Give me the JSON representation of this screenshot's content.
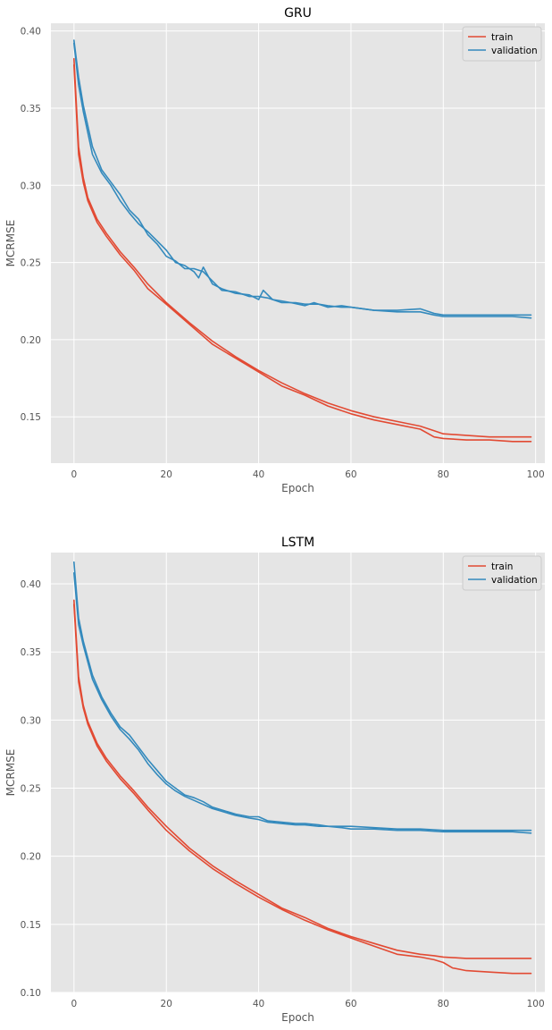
{
  "chart_data": [
    {
      "type": "line",
      "title": "GRU",
      "xlabel": "Epoch",
      "ylabel": "MCRMSE",
      "xlim": [
        -5,
        102
      ],
      "ylim": [
        0.12,
        0.405
      ],
      "xticks": [
        0,
        20,
        40,
        60,
        80,
        100
      ],
      "yticks": [
        0.15,
        0.2,
        0.25,
        0.3,
        0.35,
        0.4
      ],
      "ytick_labels": [
        "0.15",
        "0.20",
        "0.25",
        "0.30",
        "0.35",
        "0.40"
      ],
      "grid": true,
      "legend_position": "top-right",
      "legend": [
        {
          "label": "train",
          "color": "#e24a33"
        },
        {
          "label": "validation",
          "color": "#348abd"
        }
      ],
      "series": [
        {
          "name": "train",
          "color": "#e24a33",
          "x": [
            0,
            1,
            2,
            3,
            5,
            7,
            10,
            13,
            16,
            20,
            25,
            30,
            35,
            40,
            45,
            50,
            55,
            60,
            65,
            70,
            75,
            78,
            80,
            85,
            90,
            95,
            99
          ],
          "y": [
            0.382,
            0.325,
            0.305,
            0.292,
            0.278,
            0.269,
            0.257,
            0.247,
            0.236,
            0.224,
            0.211,
            0.199,
            0.189,
            0.18,
            0.172,
            0.165,
            0.159,
            0.154,
            0.15,
            0.147,
            0.144,
            0.141,
            0.139,
            0.138,
            0.137,
            0.137,
            0.137
          ]
        },
        {
          "name": "train",
          "color": "#e24a33",
          "x": [
            0,
            1,
            2,
            3,
            5,
            7,
            10,
            13,
            16,
            20,
            25,
            30,
            35,
            40,
            45,
            50,
            55,
            60,
            65,
            70,
            75,
            78,
            80,
            85,
            90,
            95,
            99
          ],
          "y": [
            0.378,
            0.32,
            0.302,
            0.29,
            0.276,
            0.267,
            0.255,
            0.245,
            0.233,
            0.223,
            0.21,
            0.197,
            0.188,
            0.179,
            0.17,
            0.164,
            0.157,
            0.152,
            0.148,
            0.145,
            0.142,
            0.137,
            0.136,
            0.135,
            0.135,
            0.134,
            0.134
          ]
        },
        {
          "name": "validation",
          "color": "#348abd",
          "x": [
            0,
            1,
            2,
            4,
            6,
            8,
            10,
            12,
            14,
            16,
            18,
            20,
            22,
            24,
            26,
            28,
            30,
            32,
            35,
            38,
            40,
            42,
            45,
            48,
            50,
            53,
            55,
            58,
            60,
            65,
            70,
            75,
            78,
            80,
            85,
            90,
            95,
            99
          ],
          "y": [
            0.394,
            0.37,
            0.352,
            0.325,
            0.31,
            0.302,
            0.294,
            0.284,
            0.278,
            0.268,
            0.262,
            0.254,
            0.251,
            0.246,
            0.246,
            0.244,
            0.238,
            0.232,
            0.231,
            0.228,
            0.228,
            0.227,
            0.224,
            0.224,
            0.223,
            0.223,
            0.222,
            0.221,
            0.221,
            0.219,
            0.219,
            0.22,
            0.217,
            0.216,
            0.216,
            0.216,
            0.216,
            0.216
          ]
        },
        {
          "name": "validation",
          "color": "#348abd",
          "x": [
            0,
            1,
            2,
            4,
            6,
            8,
            10,
            12,
            14,
            16,
            18,
            20,
            22,
            24,
            26,
            27,
            28,
            30,
            32,
            35,
            38,
            40,
            41,
            43,
            45,
            47,
            50,
            52,
            55,
            58,
            60,
            65,
            70,
            75,
            78,
            80,
            85,
            90,
            95,
            99
          ],
          "y": [
            0.392,
            0.365,
            0.348,
            0.32,
            0.308,
            0.3,
            0.29,
            0.282,
            0.275,
            0.27,
            0.264,
            0.258,
            0.25,
            0.248,
            0.244,
            0.24,
            0.247,
            0.236,
            0.233,
            0.23,
            0.229,
            0.226,
            0.232,
            0.226,
            0.225,
            0.224,
            0.222,
            0.224,
            0.221,
            0.222,
            0.221,
            0.219,
            0.218,
            0.218,
            0.216,
            0.215,
            0.215,
            0.215,
            0.215,
            0.214
          ]
        }
      ]
    },
    {
      "type": "line",
      "title": "LSTM",
      "xlabel": "Epoch",
      "ylabel": "MCRMSE",
      "xlim": [
        -5,
        102
      ],
      "ylim": [
        0.1,
        0.423
      ],
      "xticks": [
        0,
        20,
        40,
        60,
        80,
        100
      ],
      "yticks": [
        0.1,
        0.15,
        0.2,
        0.25,
        0.3,
        0.35,
        0.4
      ],
      "ytick_labels": [
        "0.10",
        "0.15",
        "0.20",
        "0.25",
        "0.30",
        "0.35",
        "0.40"
      ],
      "grid": true,
      "legend_position": "top-right",
      "legend": [
        {
          "label": "train",
          "color": "#e24a33"
        },
        {
          "label": "validation",
          "color": "#348abd"
        }
      ],
      "series": [
        {
          "name": "train",
          "color": "#e24a33",
          "x": [
            0,
            1,
            2,
            3,
            5,
            7,
            10,
            13,
            16,
            20,
            25,
            30,
            35,
            40,
            45,
            50,
            55,
            60,
            65,
            70,
            75,
            78,
            80,
            85,
            90,
            95,
            99
          ],
          "y": [
            0.388,
            0.332,
            0.311,
            0.299,
            0.283,
            0.272,
            0.259,
            0.248,
            0.236,
            0.222,
            0.206,
            0.193,
            0.182,
            0.172,
            0.162,
            0.155,
            0.147,
            0.141,
            0.136,
            0.131,
            0.128,
            0.127,
            0.126,
            0.125,
            0.125,
            0.125,
            0.125
          ]
        },
        {
          "name": "train",
          "color": "#e24a33",
          "x": [
            0,
            1,
            2,
            3,
            5,
            7,
            10,
            13,
            16,
            20,
            25,
            30,
            35,
            40,
            45,
            50,
            55,
            60,
            65,
            70,
            75,
            78,
            80,
            82,
            85,
            90,
            95,
            99
          ],
          "y": [
            0.385,
            0.328,
            0.309,
            0.297,
            0.281,
            0.27,
            0.257,
            0.246,
            0.234,
            0.219,
            0.204,
            0.191,
            0.18,
            0.17,
            0.161,
            0.153,
            0.146,
            0.14,
            0.134,
            0.128,
            0.126,
            0.124,
            0.122,
            0.118,
            0.116,
            0.115,
            0.114,
            0.114
          ]
        },
        {
          "name": "validation",
          "color": "#348abd",
          "x": [
            0,
            1,
            2,
            4,
            6,
            8,
            10,
            12,
            14,
            16,
            18,
            20,
            22,
            24,
            26,
            28,
            30,
            32,
            35,
            38,
            40,
            42,
            45,
            48,
            50,
            53,
            55,
            58,
            60,
            65,
            70,
            75,
            80,
            85,
            90,
            95,
            99
          ],
          "y": [
            0.416,
            0.375,
            0.358,
            0.333,
            0.317,
            0.305,
            0.295,
            0.289,
            0.28,
            0.271,
            0.263,
            0.255,
            0.25,
            0.245,
            0.243,
            0.24,
            0.236,
            0.234,
            0.231,
            0.229,
            0.229,
            0.226,
            0.225,
            0.224,
            0.224,
            0.223,
            0.222,
            0.222,
            0.222,
            0.221,
            0.22,
            0.22,
            0.219,
            0.219,
            0.219,
            0.219,
            0.219
          ]
        },
        {
          "name": "validation",
          "color": "#348abd",
          "x": [
            0,
            1,
            2,
            4,
            6,
            8,
            10,
            12,
            14,
            16,
            18,
            20,
            22,
            24,
            26,
            28,
            30,
            32,
            35,
            38,
            40,
            42,
            45,
            48,
            50,
            53,
            55,
            58,
            60,
            65,
            70,
            75,
            80,
            85,
            90,
            95,
            99
          ],
          "y": [
            0.408,
            0.37,
            0.355,
            0.33,
            0.315,
            0.303,
            0.293,
            0.286,
            0.278,
            0.268,
            0.26,
            0.253,
            0.248,
            0.244,
            0.241,
            0.238,
            0.235,
            0.233,
            0.23,
            0.228,
            0.227,
            0.225,
            0.224,
            0.223,
            0.223,
            0.222,
            0.222,
            0.221,
            0.22,
            0.22,
            0.219,
            0.219,
            0.218,
            0.218,
            0.218,
            0.218,
            0.217
          ]
        }
      ]
    }
  ]
}
